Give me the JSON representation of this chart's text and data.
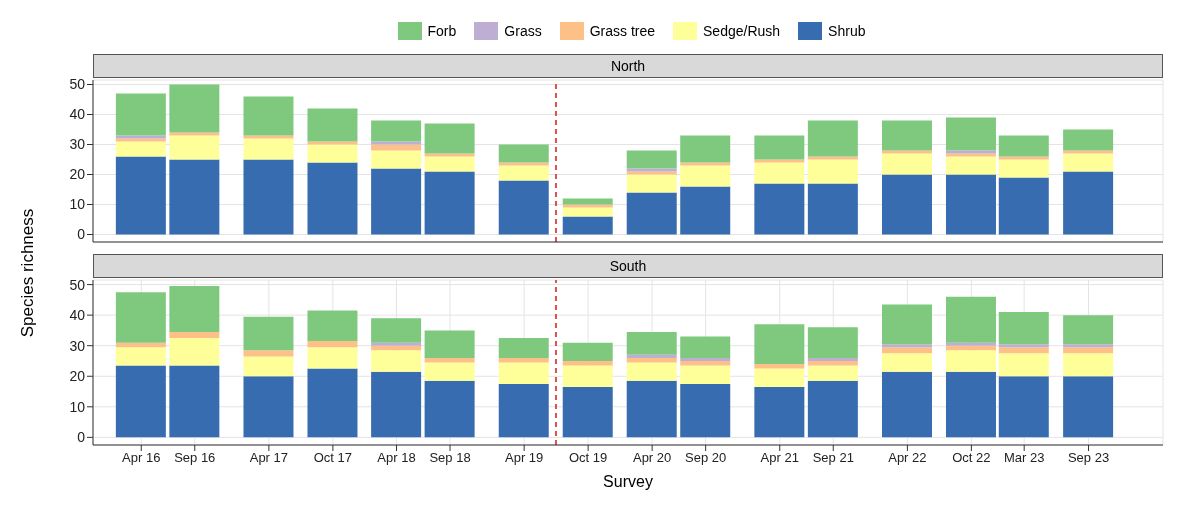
{
  "chart_data": [
    {
      "type": "bar",
      "title": "North",
      "ylabel": "Species richness",
      "stacked": true,
      "legend": "top",
      "grid": true,
      "tick_labels": "y",
      "x": [
        "2016-04",
        "2016-09",
        "2017-04",
        "2017-10",
        "2018-04",
        "2018-09",
        "2019-04",
        "2019-10",
        "2020-04",
        "2020-09",
        "2021-04",
        "2021-09",
        "2022-04",
        "2022-10",
        "2023-03",
        "2023-09"
      ],
      "xlim": [
        "2015-11-15",
        "2024-04-01"
      ],
      "xticks": [
        {
          "value": "2016-04",
          "label": null
        },
        {
          "value": "2016-09",
          "label": null
        },
        {
          "value": "2017-04",
          "label": null
        },
        {
          "value": "2017-10",
          "label": null
        },
        {
          "value": "2018-04",
          "label": null
        },
        {
          "value": "2018-09",
          "label": null
        },
        {
          "value": "2019-04",
          "label": null
        },
        {
          "value": "2019-10",
          "label": null
        },
        {
          "value": "2020-04",
          "label": null
        },
        {
          "value": "2020-09",
          "label": null
        },
        {
          "value": "2021-04",
          "label": null
        },
        {
          "value": "2021-09",
          "label": null
        },
        {
          "value": "2022-04",
          "label": null
        },
        {
          "value": "2022-10",
          "label": null
        },
        {
          "value": "2023-03",
          "label": null
        },
        {
          "value": "2023-09",
          "label": null
        }
      ],
      "ylim": [
        -2.5,
        51.5
      ],
      "yticks": [
        0,
        10,
        20,
        30,
        40,
        50
      ],
      "ref_lines": [
        {
          "axis": "x",
          "value": "2019-07",
          "color": "#d9534f",
          "line_style": "dashed"
        }
      ],
      "series": [
        {
          "name": "Shrub",
          "color": "#386cb0",
          "values": [
            26,
            25,
            25,
            24,
            22,
            21,
            18,
            6,
            14,
            16,
            17,
            17,
            20,
            20,
            19,
            21
          ]
        },
        {
          "name": "Sedge/Rush",
          "color": "#ffff99",
          "values": [
            5,
            8,
            7,
            6,
            6,
            5,
            5,
            3,
            6,
            7,
            7,
            8,
            7,
            6,
            6,
            6
          ]
        },
        {
          "name": "Grass tree",
          "color": "#fdc086",
          "values": [
            1,
            1,
            1,
            1,
            2,
            1,
            1,
            1,
            1,
            1,
            1,
            1,
            1,
            1,
            1,
            1
          ]
        },
        {
          "name": "Grass",
          "color": "#beaed4",
          "values": [
            1,
            0,
            0,
            0,
            1,
            0,
            0,
            0,
            1,
            0,
            0,
            0,
            0,
            1,
            0,
            0
          ]
        },
        {
          "name": "Forb",
          "color": "#7fc97f",
          "values": [
            14,
            16,
            13,
            11,
            7,
            10,
            6,
            2,
            6,
            9,
            8,
            12,
            10,
            11,
            7,
            7
          ]
        }
      ]
    },
    {
      "type": "bar",
      "title": "South",
      "xlabel": "Survey",
      "stacked": true,
      "grid": true,
      "x": [
        "2016-04",
        "2016-09",
        "2017-04",
        "2017-10",
        "2018-04",
        "2018-09",
        "2019-04",
        "2019-10",
        "2020-04",
        "2020-09",
        "2021-04",
        "2021-09",
        "2022-04",
        "2022-10",
        "2023-03",
        "2023-09"
      ],
      "xlim": [
        "2015-11-15",
        "2024-04-01"
      ],
      "xticks": [
        {
          "value": "2016-04",
          "label": "Apr 16"
        },
        {
          "value": "2016-09",
          "label": "Sep 16"
        },
        {
          "value": "2017-04",
          "label": "Apr 17"
        },
        {
          "value": "2017-10",
          "label": "Oct 17"
        },
        {
          "value": "2018-04",
          "label": "Apr 18"
        },
        {
          "value": "2018-09",
          "label": "Sep 18"
        },
        {
          "value": "2019-04",
          "label": "Apr 19"
        },
        {
          "value": "2019-10",
          "label": "Oct 19"
        },
        {
          "value": "2020-04",
          "label": "Apr 20"
        },
        {
          "value": "2020-09",
          "label": "Sep 20"
        },
        {
          "value": "2021-04",
          "label": "Apr 21"
        },
        {
          "value": "2021-09",
          "label": "Sep 21"
        },
        {
          "value": "2022-04",
          "label": "Apr 22"
        },
        {
          "value": "2022-10",
          "label": "Oct 22"
        },
        {
          "value": "2023-03",
          "label": "Mar 23"
        },
        {
          "value": "2023-09",
          "label": "Sep 23"
        }
      ],
      "ylim": [
        -2.5,
        51.5
      ],
      "yticks": [
        0,
        10,
        20,
        30,
        40,
        50
      ],
      "ref_lines": [
        {
          "axis": "x",
          "value": "2019-07",
          "color": "#d9534f",
          "line_style": "dashed"
        }
      ],
      "series": [
        {
          "color": "#386cb0",
          "values": [
            23.5,
            23.5,
            20,
            22.5,
            21.5,
            18.5,
            17.5,
            16.5,
            18.5,
            17.5,
            16.5,
            18.5,
            21.5,
            21.5,
            20,
            20
          ]
        },
        {
          "color": "#ffff99",
          "values": [
            6,
            9,
            6.5,
            7,
            7,
            6,
            7,
            7,
            6,
            6,
            6,
            5,
            6,
            7,
            7.5,
            7.5
          ]
        },
        {
          "color": "#fdc086",
          "values": [
            1.5,
            2,
            2,
            2,
            1.5,
            1.5,
            1.5,
            1.5,
            1.5,
            1.5,
            1.5,
            1.5,
            2,
            1.5,
            2,
            2
          ]
        },
        {
          "color": "#beaed4",
          "values": [
            0,
            0,
            0,
            0,
            1,
            0,
            0,
            0,
            1,
            1,
            0,
            1,
            1,
            1,
            1,
            1
          ]
        },
        {
          "color": "#7fc97f",
          "values": [
            16.5,
            15,
            11,
            10,
            8,
            9,
            6.5,
            6,
            7.5,
            7,
            13,
            10,
            13,
            15,
            10.5,
            9.5
          ]
        }
      ]
    }
  ]
}
